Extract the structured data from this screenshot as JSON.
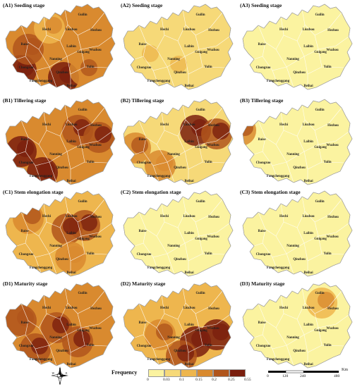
{
  "panels": [
    {
      "id": "A1",
      "title": "(A1) Seeding stage",
      "level": 0.6,
      "hot": [
        [
          30,
          100,
          0.9
        ],
        [
          90,
          110,
          0.95
        ],
        [
          40,
          70,
          0.7
        ],
        [
          120,
          100,
          0.6
        ],
        [
          70,
          40,
          0.4
        ]
      ]
    },
    {
      "id": "A2",
      "title": "(A2) Seeding stage",
      "level": 0.12,
      "hot": [
        [
          40,
          80,
          0.25
        ],
        [
          80,
          95,
          0.2
        ]
      ]
    },
    {
      "id": "A3",
      "title": "(A3) Seeding stage",
      "level": 0.04,
      "hot": []
    },
    {
      "id": "B1",
      "title": "(B1) Tillering stage",
      "level": 0.55,
      "hot": [
        [
          30,
          80,
          0.9
        ],
        [
          60,
          110,
          0.9
        ],
        [
          110,
          50,
          0.85
        ],
        [
          140,
          60,
          0.8
        ]
      ]
    },
    {
      "id": "B2",
      "title": "(B2) Tillering stage",
      "level": 0.25,
      "hot": [
        [
          110,
          50,
          0.9
        ],
        [
          140,
          55,
          0.75
        ],
        [
          60,
          100,
          0.5
        ],
        [
          25,
          75,
          0.55
        ]
      ]
    },
    {
      "id": "B3",
      "title": "(B3) Tillering stage",
      "level": 0.05,
      "hot": [
        [
          5,
          50,
          0.6
        ]
      ]
    },
    {
      "id": "C1",
      "title": "(C1) Stem elongation stage",
      "level": 0.45,
      "hot": [
        [
          120,
          55,
          0.85
        ],
        [
          95,
          60,
          0.75
        ],
        [
          40,
          45,
          0.6
        ],
        [
          100,
          100,
          0.5
        ]
      ]
    },
    {
      "id": "C2",
      "title": "(C2) Stem elongation stage",
      "level": 0.06,
      "hot": []
    },
    {
      "id": "C3",
      "title": "(C3) Stem elongation stage",
      "level": 0.03,
      "hot": []
    },
    {
      "id": "D1",
      "title": "(D1) Maturity stage",
      "level": 0.6,
      "hot": [
        [
          80,
          70,
          0.85
        ],
        [
          50,
          100,
          0.8
        ],
        [
          110,
          90,
          0.75
        ],
        [
          30,
          60,
          0.7
        ]
      ]
    },
    {
      "id": "D2",
      "title": "(D2) Maturity stage",
      "level": 0.45,
      "hot": [
        [
          110,
          90,
          0.95
        ],
        [
          140,
          80,
          0.9
        ],
        [
          90,
          110,
          0.8
        ],
        [
          60,
          80,
          0.6
        ]
      ]
    },
    {
      "id": "D3",
      "title": "(D3) Maturity stage",
      "level": 0.06,
      "hot": [
        [
          120,
          35,
          0.4
        ]
      ]
    }
  ],
  "cities": [
    "Guilin",
    "Hechi",
    "Liuzhou",
    "Hezhou",
    "Laibin",
    "Baise",
    "Wuzhou",
    "Guigang",
    "Nanning",
    "Chongzuo",
    "Yulin",
    "Qinzhou",
    "Fangchenggang",
    "Beihai"
  ],
  "legend": {
    "title": "Frequency",
    "ticks": [
      "0",
      "0.03",
      "0.1",
      "0.15",
      "0.2",
      "0.25",
      "0.55"
    ],
    "colors": [
      "#fbf3a0",
      "#f6d978",
      "#eeb64e",
      "#d98a2f",
      "#b0551c",
      "#7a1f0e"
    ]
  },
  "scale": {
    "ticks": [
      "0",
      "120",
      "240",
      "480"
    ],
    "unit": "Km"
  },
  "compass": {
    "labels": [
      "N",
      "S",
      "E",
      "W"
    ]
  }
}
